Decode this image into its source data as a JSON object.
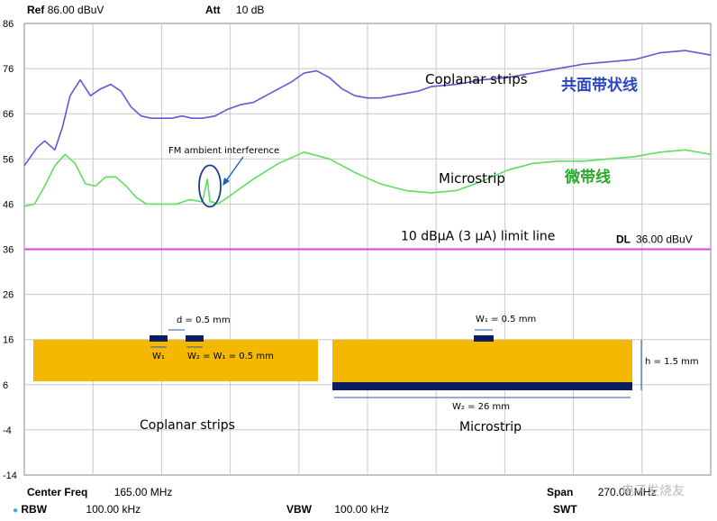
{
  "header": {
    "ref_label": "Ref",
    "ref_value": "86.00 dBuV",
    "att_label": "Att",
    "att_value": "10 dB"
  },
  "footer": {
    "center_label": "Center Freq",
    "center_value": "165.00 MHz",
    "span_label": "Span",
    "span_value": "270.00 MHz",
    "rbw_label": "RBW",
    "rbw_value": "100.00 kHz",
    "vbw_label": "VBW",
    "vbw_value": "100.00 kHz",
    "swt_label": "SWT"
  },
  "watermark": "电子发烧友",
  "chart_data": {
    "type": "line",
    "ylim": [
      -14,
      86
    ],
    "yticks": [
      86,
      76,
      66,
      56,
      46,
      36,
      26,
      16,
      6,
      -4,
      -14
    ],
    "y_tick_labels": [
      "86",
      "76",
      "66",
      "56",
      "46",
      "36",
      "26",
      "16",
      "6",
      "-4",
      "-14"
    ],
    "xlim": [
      30,
      300
    ],
    "x_grid": true,
    "y_grid": true,
    "series": [
      {
        "label_en": "Coplanar strips",
        "label_cn": "共面带状线",
        "color": "#5b5bd6",
        "x": [
          30,
          35,
          38,
          42,
          45,
          48,
          52,
          56,
          60,
          64,
          68,
          72,
          76,
          80,
          84,
          88,
          92,
          96,
          100,
          105,
          110,
          115,
          120,
          125,
          130,
          135,
          140,
          145,
          150,
          155,
          160,
          165,
          170,
          175,
          180,
          185,
          190,
          200,
          210,
          220,
          230,
          240,
          250,
          260,
          270,
          280,
          290,
          300
        ],
        "y": [
          54.5,
          58.5,
          60,
          58,
          63,
          70,
          73.5,
          70,
          71.5,
          72.5,
          71,
          67.5,
          65.5,
          65,
          65,
          65,
          65.5,
          65,
          65,
          65.5,
          67,
          68,
          68.5,
          70,
          71.5,
          73,
          75,
          75.5,
          74,
          71.5,
          70,
          69.5,
          69.5,
          70,
          70.5,
          71,
          72,
          72.5,
          73.5,
          74,
          75,
          76,
          77,
          77.5,
          78,
          79.5,
          80,
          79
        ]
      },
      {
        "label_en": "Microstrip",
        "label_cn": "微带线",
        "color": "#5ee05e",
        "x": [
          30,
          34,
          38,
          42,
          46,
          50,
          54,
          58,
          62,
          66,
          70,
          74,
          78,
          82,
          86,
          90,
          95,
          100,
          102,
          103,
          104,
          106,
          110,
          115,
          120,
          130,
          140,
          150,
          160,
          170,
          180,
          190,
          200,
          210,
          220,
          230,
          240,
          250,
          260,
          270,
          280,
          290,
          300
        ],
        "y": [
          45.5,
          46,
          50,
          54.5,
          57,
          55,
          50.5,
          50,
          52,
          52,
          50,
          47.5,
          46,
          46,
          46,
          46,
          47,
          46.5,
          51.5,
          46.5,
          46.5,
          46,
          47.5,
          49.5,
          51.5,
          55,
          57.5,
          56,
          53,
          50.5,
          49,
          48.5,
          49,
          51,
          53.5,
          55,
          55.5,
          55.5,
          56,
          56.5,
          57.5,
          58,
          57
        ]
      }
    ],
    "limit_line": {
      "value": 36,
      "label": "DL",
      "value_label": "36.00 dBuV",
      "color": "#e040e0",
      "caption": "10 dBμA (3 μA) limit line"
    },
    "annotation": {
      "text": "FM ambient interference",
      "x": 103,
      "y": 50
    },
    "insets": {
      "coplanar": {
        "title": "Coplanar strips",
        "d_label": "d = 0.5 mm",
        "w1_label": "W₁",
        "w2_label": "W₂ = W₁ = 0.5 mm"
      },
      "microstrip": {
        "title": "Microstrip",
        "w1_label": "W₁ = 0.5 mm",
        "w2_label": "W₂ = 26 mm",
        "h_label": "h = 1.5 mm"
      }
    },
    "colors": {
      "substrate": "#f5b800",
      "conductor": "#0b1f5e",
      "dimension": "#1f5fb5"
    }
  }
}
